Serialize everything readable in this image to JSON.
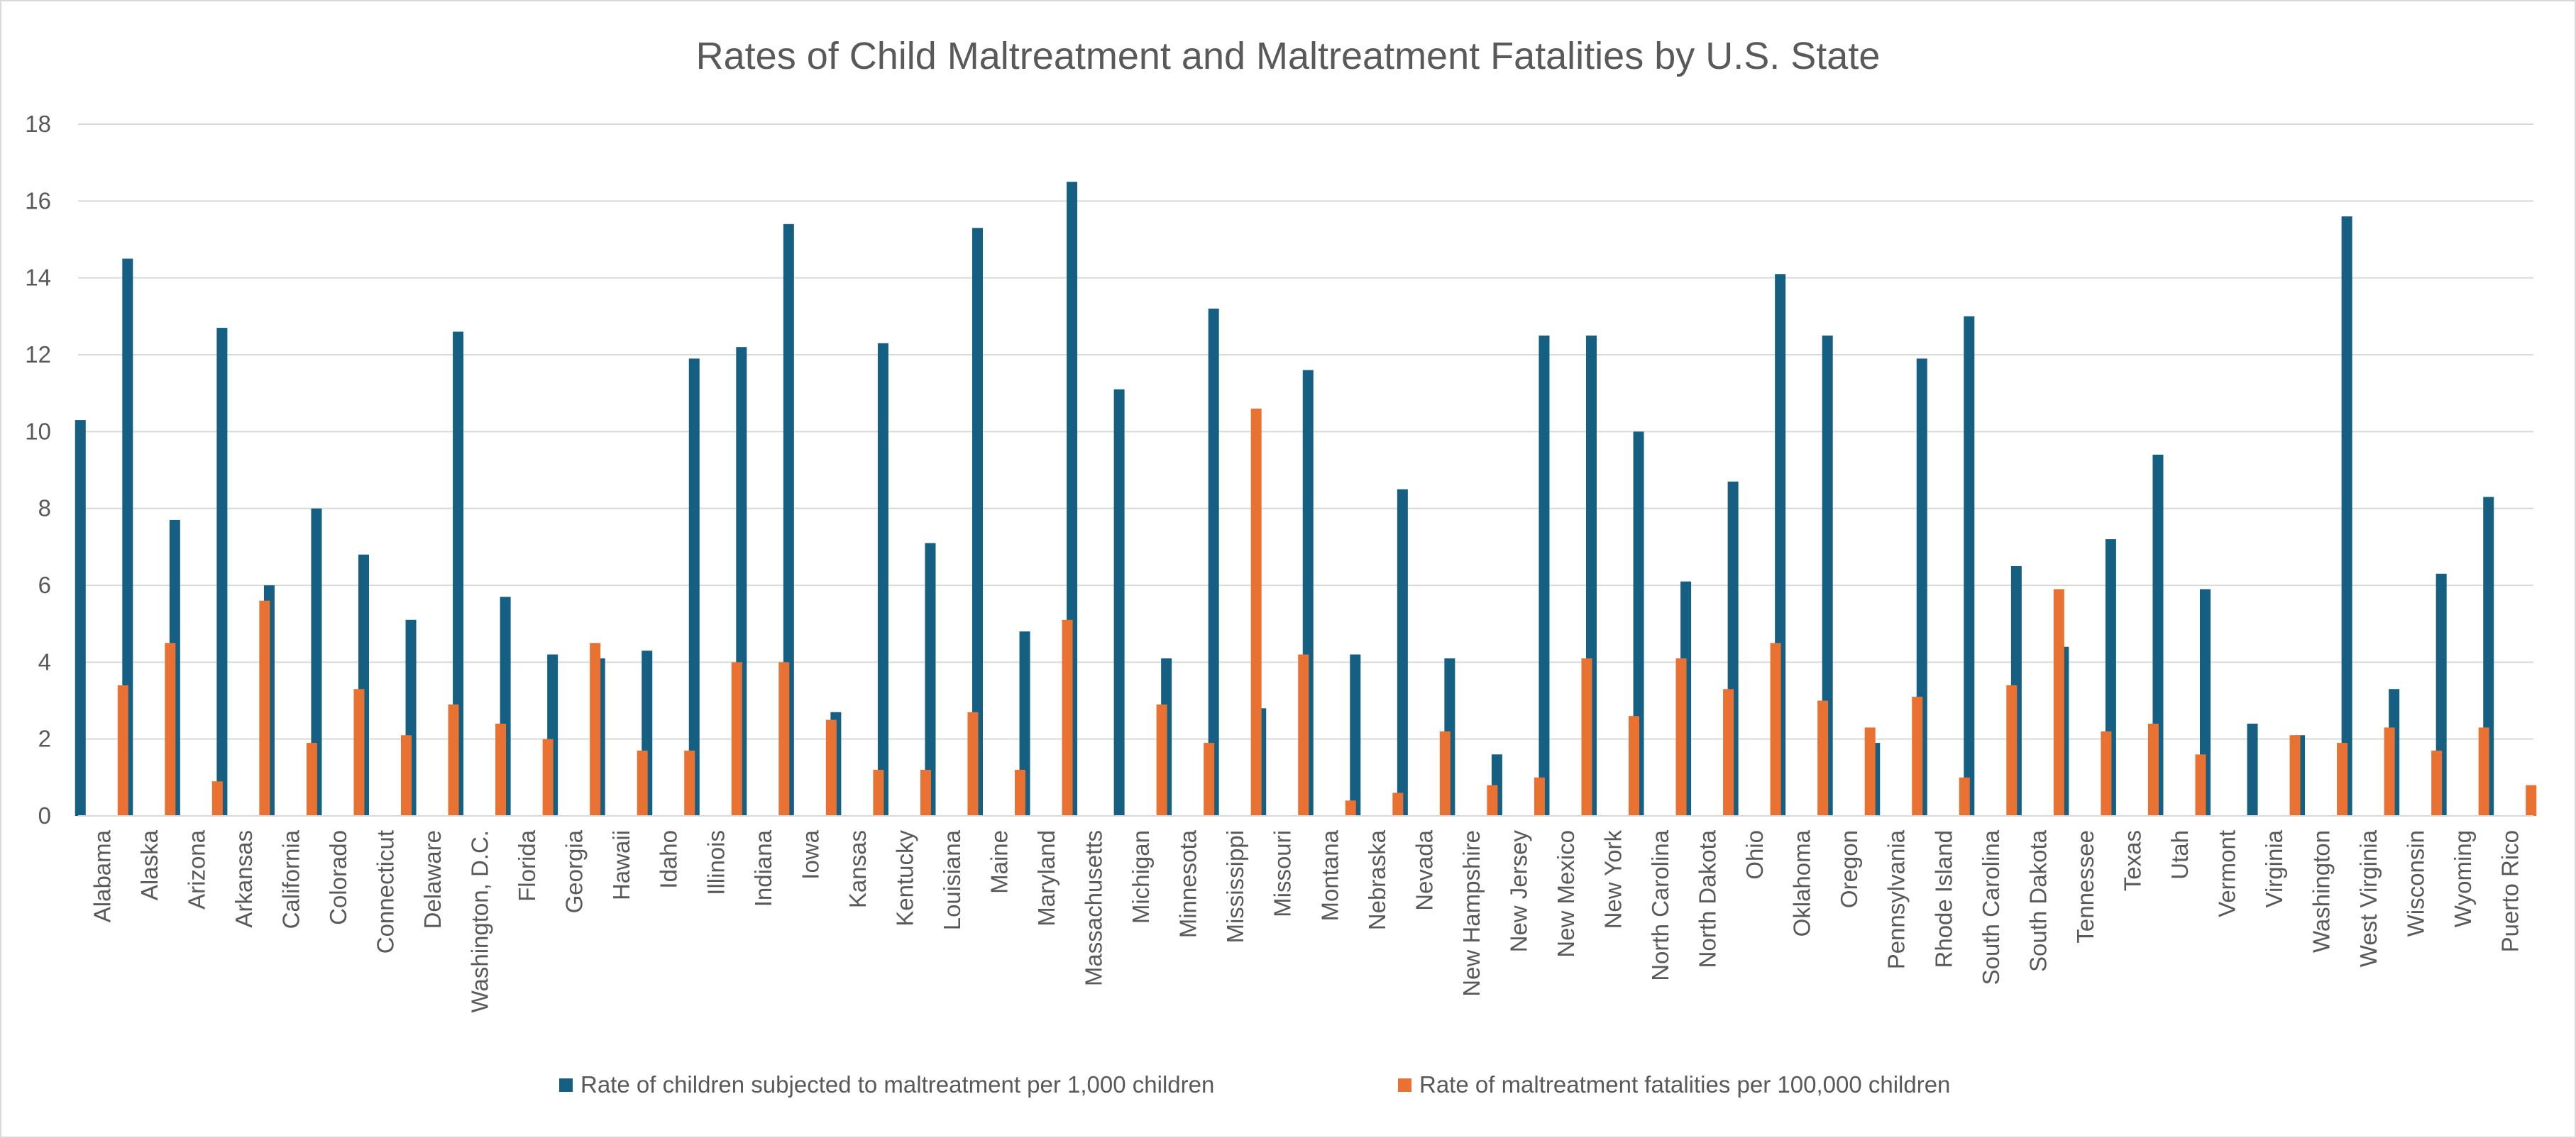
{
  "chart_data": {
    "type": "bar",
    "title": "Rates of Child Maltreatment and Maltreatment Fatalities by U.S. State",
    "xlabel": "",
    "ylabel": "",
    "ylim": [
      0,
      18
    ],
    "yticks": [
      0,
      2,
      4,
      6,
      8,
      10,
      12,
      14,
      16,
      18
    ],
    "grid": true,
    "legend_position": "bottom",
    "categories": [
      "Alabama",
      "Alaska",
      "Arizona",
      "Arkansas",
      "California",
      "Colorado",
      "Connecticut",
      "Delaware",
      "Washington, D.C.",
      "Florida",
      "Georgia",
      "Hawaii",
      "Idaho",
      "Illinois",
      "Indiana",
      "Iowa",
      "Kansas",
      "Kentucky",
      "Louisiana",
      "Maine",
      "Maryland",
      "Massachusetts",
      "Michigan",
      "Minnesota",
      "Mississippi",
      "Missouri",
      "Montana",
      "Nebraska",
      "Nevada",
      "New Hampshire",
      "New Jersey",
      "New Mexico",
      "New York",
      "North Carolina",
      "North Dakota",
      "Ohio",
      "Oklahoma",
      "Oregon",
      "Pennsylvania",
      "Rhode Island",
      "South Carolina",
      "South Dakota",
      "Tennessee",
      "Texas",
      "Utah",
      "Vermont",
      "Virginia",
      "Washington",
      "West Virginia",
      "Wisconsin",
      "Wyoming",
      "Puerto Rico"
    ],
    "series": [
      {
        "name": "Rate of children subjected to maltreatment per 1,000 children",
        "color": "#156082",
        "values": [
          10.3,
          14.5,
          7.7,
          12.7,
          6.0,
          8.0,
          6.8,
          5.1,
          12.6,
          5.7,
          4.2,
          4.1,
          4.3,
          11.9,
          12.2,
          15.4,
          2.7,
          12.3,
          7.1,
          15.3,
          4.8,
          16.5,
          11.1,
          4.1,
          13.2,
          2.8,
          11.6,
          4.2,
          8.5,
          4.1,
          1.6,
          12.5,
          12.5,
          10.0,
          6.1,
          8.7,
          14.1,
          12.5,
          1.9,
          11.9,
          13.0,
          6.5,
          4.4,
          7.2,
          9.4,
          5.9,
          2.4,
          2.1,
          15.6,
          3.3,
          6.3,
          8.3
        ]
      },
      {
        "name": "Rate of maltreatment fatalities per 100,000 children",
        "color": "#E97132",
        "values": [
          3.4,
          4.5,
          0.9,
          5.6,
          1.9,
          3.3,
          2.1,
          2.9,
          2.4,
          2.0,
          4.5,
          1.7,
          1.7,
          4.0,
          4.0,
          2.5,
          1.2,
          1.2,
          2.7,
          1.2,
          5.1,
          0,
          2.9,
          1.9,
          10.6,
          4.2,
          0.4,
          0.6,
          2.2,
          0.8,
          1.0,
          4.1,
          2.6,
          4.1,
          3.3,
          4.5,
          3.0,
          2.3,
          3.1,
          1.0,
          3.4,
          5.9,
          2.2,
          2.4,
          1.6,
          0,
          2.1,
          1.9,
          2.3,
          1.7,
          2.3,
          0.8
        ]
      }
    ]
  }
}
